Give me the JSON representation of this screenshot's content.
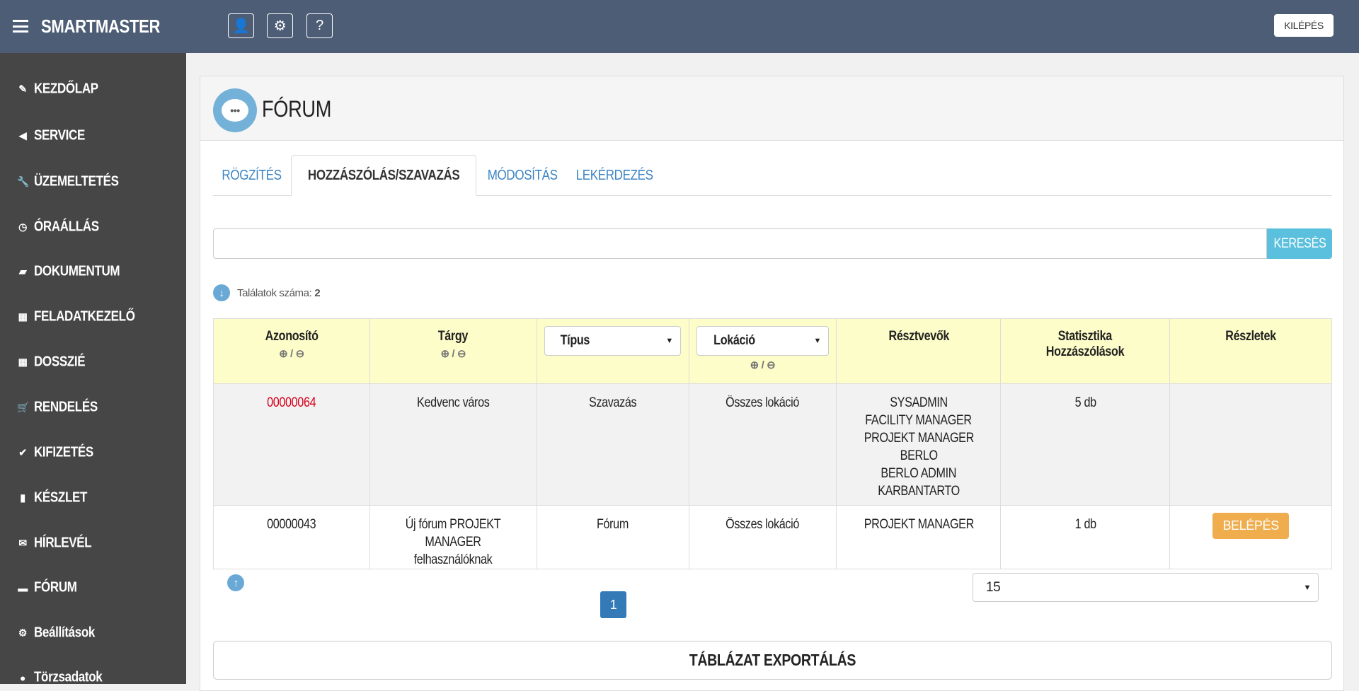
{
  "app": {
    "title": "SMARTMASTER",
    "logout": "KILÉPÉS"
  },
  "sidebar": {
    "items": [
      {
        "label": "KEZDŐLAP",
        "icon": "edit-icon"
      },
      {
        "label": "SERVICE",
        "icon": "megaphone-icon"
      },
      {
        "label": "ÜZEMELTETÉS",
        "icon": "wrench-icon"
      },
      {
        "label": "ÓRAÁLLÁS",
        "icon": "clock-icon"
      },
      {
        "label": "DOKUMENTUM",
        "icon": "folder-icon"
      },
      {
        "label": "FELADATKEZELŐ",
        "icon": "calendar-icon"
      },
      {
        "label": "DOSSZIÉ",
        "icon": "grid-icon"
      },
      {
        "label": "RENDELÉS",
        "icon": "cart-icon"
      },
      {
        "label": "KIFIZETÉS",
        "icon": "check-circle-icon"
      },
      {
        "label": "KÉSZLET",
        "icon": "bar-chart-icon"
      },
      {
        "label": "HÍRLEVÉL",
        "icon": "envelope-icon"
      },
      {
        "label": "FÓRUM",
        "icon": "comment-icon"
      },
      {
        "label": "Beállítások",
        "icon": "gear-icon"
      },
      {
        "label": "Törzsadatok",
        "icon": "user-icon"
      }
    ]
  },
  "page": {
    "title": "FÓRUM"
  },
  "tabs": [
    "RÖGZÍTÉS",
    "HOZZÁSZÓLÁS/SZAVAZÁS",
    "MÓDOSÍTÁS",
    "LEKÉRDEZÉS"
  ],
  "search": {
    "value": "",
    "button": "KERESÉS"
  },
  "results": {
    "label": "Találatok száma:",
    "count": "2"
  },
  "table": {
    "headers": {
      "id": "Azonosító",
      "subject": "Tárgy",
      "type": "Típus",
      "location": "Lokáció",
      "participants": "Résztvevők",
      "stats1": "Statisztika",
      "stats2": "Hozzászólások",
      "details": "Részletek"
    },
    "sort_sep": "/",
    "rows": [
      {
        "id": "00000064",
        "subject": "Kedvenc város",
        "type": "Szavazás",
        "location": "Összes lokáció",
        "participants": [
          "SYSADMIN",
          "FACILITY MANAGER",
          "PROJEKT MANAGER",
          "BERLO",
          "BERLO ADMIN",
          "KARBANTARTO"
        ],
        "stats": "5 db",
        "details": ""
      },
      {
        "id": "00000043",
        "subject": "Új fórum PROJEKT MANAGER felhasználóknak",
        "type": "Fórum",
        "location": "Összes lokáció",
        "participants": [
          "PROJEKT MANAGER"
        ],
        "stats": "1 db",
        "details": "BELÉPÉS"
      }
    ]
  },
  "pagination": {
    "current": "1",
    "page_size": "15"
  },
  "export": "TÁBLÁZAT EXPORTÁLÁS"
}
